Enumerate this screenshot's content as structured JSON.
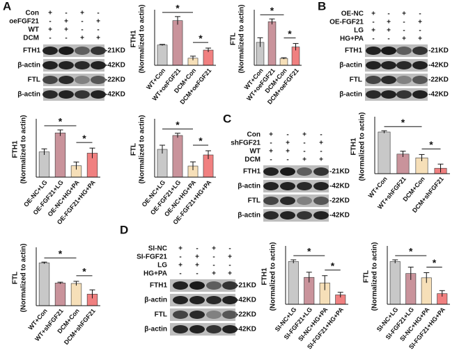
{
  "blots": [
    {
      "label": "A",
      "conditions": [
        {
          "name": "Con",
          "signs": [
            "+",
            "-",
            "+",
            "-"
          ]
        },
        {
          "name": "oeFGF21",
          "signs": [
            "-",
            "+",
            "-",
            "+"
          ]
        },
        {
          "name": "WT",
          "signs": [
            "+",
            "+",
            "-",
            "-"
          ]
        },
        {
          "name": "DCM",
          "signs": [
            "-",
            "-",
            "+",
            "+"
          ]
        }
      ],
      "bands": [
        {
          "protein": "FTH1",
          "size": "-21KD"
        },
        {
          "protein": "β-actin",
          "size": "-42KD"
        },
        {
          "protein": "FTL",
          "size": "-22KD"
        },
        {
          "protein": "β-actin",
          "size": "-42KD"
        }
      ]
    },
    {
      "label": "B",
      "conditions": [
        {
          "name": "OE-NC",
          "signs": [
            "+",
            "-",
            "+",
            "-"
          ]
        },
        {
          "name": "OE-FGF21",
          "signs": [
            "-",
            "+",
            "-",
            "+"
          ]
        },
        {
          "name": "LG",
          "signs": [
            "+",
            "+",
            "-",
            "-"
          ]
        },
        {
          "name": "HG+PA",
          "signs": [
            "-",
            "-",
            "+",
            "+"
          ]
        }
      ],
      "bands": [
        {
          "protein": "FTH1",
          "size": "-21KD"
        },
        {
          "protein": "β-actin",
          "size": "-42KD"
        },
        {
          "protein": "FTL",
          "size": "-22KD"
        },
        {
          "protein": "β-actin",
          "size": "-42KD"
        }
      ]
    },
    {
      "label": "C",
      "conditions": [
        {
          "name": "Con",
          "signs": [
            "+",
            "-",
            "+",
            "-"
          ]
        },
        {
          "name": "shFGF21",
          "signs": [
            "-",
            "+",
            "-",
            "+"
          ]
        },
        {
          "name": "WT",
          "signs": [
            "+",
            "+",
            "-",
            "-"
          ]
        },
        {
          "name": "DCM",
          "signs": [
            "-",
            "-",
            "+",
            "+"
          ]
        }
      ],
      "bands": [
        {
          "protein": "FTH1",
          "size": "-21KD"
        },
        {
          "protein": "β-actin",
          "size": "-42KD"
        },
        {
          "protein": "FTL",
          "size": "-22KD"
        },
        {
          "protein": "β-actin",
          "size": "-42KD"
        }
      ]
    },
    {
      "label": "D",
      "conditions": [
        {
          "name": "SI-NC",
          "signs": [
            "+",
            "-",
            "+",
            "-"
          ]
        },
        {
          "name": "SI-FGF21",
          "signs": [
            "-",
            "+",
            "-",
            "+"
          ]
        },
        {
          "name": "LG",
          "signs": [
            "+",
            "+",
            "-",
            "-"
          ]
        },
        {
          "name": "HG+PA",
          "signs": [
            "-",
            "-",
            "+",
            "+"
          ]
        }
      ],
      "bands": [
        {
          "protein": "FTH1",
          "size": "-21KD"
        },
        {
          "protein": "β-actin",
          "size": "-42KD"
        },
        {
          "protein": "FTL",
          "size": "-22KD"
        },
        {
          "protein": "β-actin",
          "size": "-42KD"
        }
      ]
    }
  ],
  "chart_data": [
    {
      "type": "bar",
      "ylabel": "FTH1",
      "ylabel2": "(Normalized to actin)",
      "categories": [
        "WT+Con",
        "WT+oeFGF21",
        "DCM+Con",
        "DCM+oeFGF21"
      ],
      "values": [
        1.0,
        2.2,
        0.35,
        0.75
      ],
      "errors": [
        0.03,
        0.2,
        0.1,
        0.1
      ],
      "colors": [
        "#c8c8c8",
        "#c9939b",
        "#f6dfb8",
        "#f08080"
      ],
      "ylim": [
        0,
        2.6
      ],
      "significance": [
        "*",
        "*"
      ]
    },
    {
      "type": "bar",
      "ylabel": "FTL",
      "ylabel2": "(Normalized to actin)",
      "categories": [
        "WT+Con",
        "WT+oeFGF21",
        "DCM+Con",
        "DCM+oeFGF21"
      ],
      "values": [
        1.0,
        1.9,
        0.3,
        0.8
      ],
      "errors": [
        0.2,
        0.12,
        0.03,
        0.15
      ],
      "colors": [
        "#c8c8c8",
        "#c9939b",
        "#f6dfb8",
        "#f08080"
      ],
      "ylim": [
        0,
        2.3
      ],
      "significance": [
        "*",
        "*"
      ]
    },
    {
      "type": "bar",
      "ylabel": "FTH1",
      "ylabel2": "(Normalized to actin)",
      "categories": [
        "OE-NC+LG",
        "OE-FGF21+LG",
        "OE-NC+HG+PA",
        "OE-FGF21+HG+PA"
      ],
      "values": [
        1.0,
        1.75,
        0.45,
        0.95
      ],
      "errors": [
        0.12,
        0.12,
        0.15,
        0.2
      ],
      "colors": [
        "#c8c8c8",
        "#c9939b",
        "#f6dfb8",
        "#f08080"
      ],
      "ylim": [
        0,
        2.2
      ],
      "significance": [
        "*",
        "*"
      ]
    },
    {
      "type": "bar",
      "ylabel": "FTL",
      "ylabel2": "(Normalized to actin)",
      "categories": [
        "OE-NC+LG",
        "OE-FGF21+LG",
        "OE-NC+HG+PA",
        "OE-FGF21+HG+PA"
      ],
      "values": [
        1.0,
        1.5,
        0.4,
        0.8
      ],
      "errors": [
        0.15,
        0.08,
        0.15,
        0.15
      ],
      "colors": [
        "#c8c8c8",
        "#c9939b",
        "#f6dfb8",
        "#f08080"
      ],
      "ylim": [
        0,
        2.0
      ],
      "significance": [
        "*",
        "*"
      ]
    },
    {
      "type": "bar",
      "ylabel": "FTH1",
      "ylabel2": "(Normalized to actin)",
      "categories": [
        "WT+Con",
        "WT+shFGF21",
        "DCM+Con",
        "DCM+shFGF21"
      ],
      "values": [
        1.0,
        0.47,
        0.38,
        0.13
      ],
      "errors": [
        0.03,
        0.07,
        0.08,
        0.1
      ],
      "colors": [
        "#c8c8c8",
        "#c9939b",
        "#f6dfb8",
        "#f08080"
      ],
      "ylim": [
        0,
        1.3
      ],
      "significance": [
        "*",
        "*"
      ]
    },
    {
      "type": "bar",
      "ylabel": "FTL",
      "ylabel2": "(Normalized to actin)",
      "categories": [
        "WT+Con",
        "WT+shFGF21",
        "DCM+Con",
        "DCM+shFGF21"
      ],
      "values": [
        1.0,
        0.53,
        0.52,
        0.27
      ],
      "errors": [
        0.02,
        0.02,
        0.05,
        0.1
      ],
      "colors": [
        "#c8c8c8",
        "#c9939b",
        "#f6dfb8",
        "#f08080"
      ],
      "ylim": [
        0,
        1.3
      ],
      "significance": [
        "*",
        "*"
      ]
    },
    {
      "type": "bar",
      "ylabel": "FTH1",
      "ylabel2": "(Normalized to actin)",
      "categories": [
        "SI-NC+LG",
        "SI-FGF21+LG",
        "SI-NC+HG+PA",
        "SI-FGF21+HG+PA"
      ],
      "values": [
        1.0,
        0.63,
        0.5,
        0.22
      ],
      "errors": [
        0.04,
        0.12,
        0.17,
        0.06
      ],
      "colors": [
        "#c8c8c8",
        "#c9939b",
        "#f6dfb8",
        "#f08080"
      ],
      "ylim": [
        0,
        1.3
      ],
      "significance": [
        "*",
        "*"
      ]
    },
    {
      "type": "bar",
      "ylabel": "FTL",
      "ylabel2": "(Normalized to actin)",
      "categories": [
        "SI-NC+LG",
        "SI-FGF21+LG",
        "SI-NC+HG+PA",
        "SI-FGF21+HG+PA"
      ],
      "values": [
        1.0,
        0.72,
        0.62,
        0.25
      ],
      "errors": [
        0.04,
        0.15,
        0.12,
        0.07
      ],
      "colors": [
        "#c8c8c8",
        "#c9939b",
        "#f6dfb8",
        "#f08080"
      ],
      "ylim": [
        0,
        1.3
      ],
      "significance": [
        "*",
        "*"
      ]
    }
  ]
}
